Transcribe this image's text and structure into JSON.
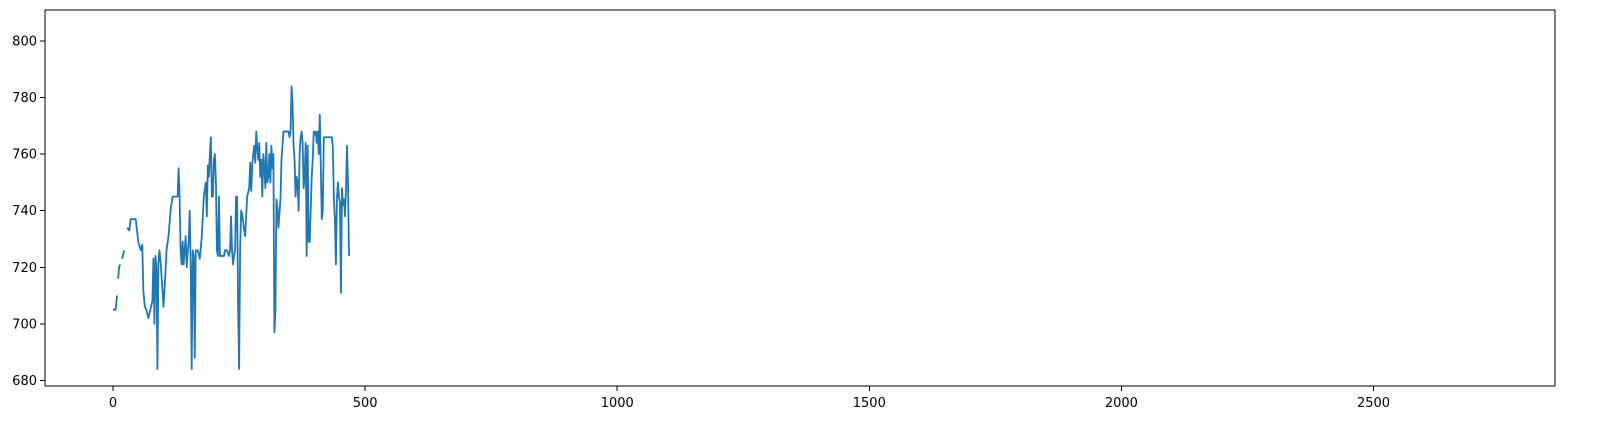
{
  "chart_data": {
    "type": "line",
    "title": "",
    "xlabel": "",
    "ylabel": "",
    "xlim": [
      -135,
      2860
    ],
    "ylim": [
      678,
      811
    ],
    "x_ticks": [
      0,
      500,
      1000,
      1500,
      2000,
      2500
    ],
    "x_tick_labels": [
      "0",
      "500",
      "1000",
      "1500",
      "2000",
      "2500"
    ],
    "y_ticks": [
      680,
      700,
      720,
      740,
      760,
      780,
      800
    ],
    "y_tick_labels": [
      "680",
      "700",
      "720",
      "740",
      "760",
      "780",
      "800"
    ],
    "grid": false,
    "legend": "none",
    "colors": {
      "series": "#1f77b4",
      "axes": "#000000",
      "background": "#ffffff"
    },
    "series": [
      {
        "segments": [
          [
            [
              0,
              705
            ],
            [
              5,
              705
            ],
            [
              8,
              710
            ]
          ],
          [
            [
              10,
              716
            ],
            [
              12,
              720
            ],
            [
              14,
              721
            ]
          ],
          [
            [
              18,
              723
            ],
            [
              22,
              726
            ]
          ],
          [
            [
              28,
              734
            ],
            [
              32,
              733
            ],
            [
              35,
              737
            ],
            [
              45,
              737
            ],
            [
              50,
              729
            ],
            [
              55,
              726
            ],
            [
              58,
              728
            ],
            [
              60,
              712
            ],
            [
              63,
              706
            ],
            [
              66,
              705
            ],
            [
              70,
              702
            ],
            [
              74,
              705
            ],
            [
              78,
              708
            ],
            [
              80,
              723
            ],
            [
              82,
              700
            ],
            [
              84,
              724
            ],
            [
              86,
              720
            ],
            [
              88,
              684
            ],
            [
              90,
              722
            ],
            [
              92,
              726
            ],
            [
              95,
              720
            ],
            [
              98,
              712
            ],
            [
              100,
              706
            ],
            [
              103,
              715
            ],
            [
              106,
              726
            ],
            [
              110,
              731
            ],
            [
              114,
              740
            ],
            [
              118,
              745
            ],
            [
              123,
              745
            ],
            [
              128,
              745
            ],
            [
              130,
              755
            ],
            [
              132,
              745
            ],
            [
              134,
              726
            ],
            [
              136,
              721
            ],
            [
              138,
              729
            ],
            [
              140,
              721
            ],
            [
              142,
              726
            ],
            [
              144,
              731
            ],
            [
              146,
              720
            ],
            [
              148,
              725
            ],
            [
              150,
              729
            ],
            [
              152,
              740
            ],
            [
              154,
              720
            ],
            [
              156,
              684
            ],
            [
              158,
              726
            ],
            [
              160,
              724
            ],
            [
              162,
              688
            ],
            [
              164,
              726
            ],
            [
              168,
              726
            ],
            [
              172,
              723
            ],
            [
              176,
              731
            ],
            [
              180,
              745
            ],
            [
              184,
              750
            ],
            [
              186,
              738
            ],
            [
              188,
              756
            ],
            [
              190,
              752
            ],
            [
              192,
              760
            ],
            [
              194,
              766
            ],
            [
              196,
              745
            ],
            [
              198,
              745
            ],
            [
              200,
              758
            ],
            [
              202,
              760
            ],
            [
              204,
              750
            ],
            [
              206,
              726
            ],
            [
              208,
              724
            ],
            [
              210,
              745
            ],
            [
              212,
              724
            ],
            [
              216,
              724
            ],
            [
              220,
              724
            ],
            [
              222,
              726
            ],
            [
              226,
              726
            ],
            [
              230,
              724
            ],
            [
              232,
              726
            ],
            [
              234,
              738
            ],
            [
              236,
              726
            ],
            [
              238,
              721
            ],
            [
              240,
              724
            ],
            [
              242,
              726
            ],
            [
              244,
              745
            ],
            [
              246,
              745
            ],
            [
              248,
              706
            ],
            [
              250,
              684
            ],
            [
              252,
              726
            ],
            [
              254,
              740
            ],
            [
              256,
              739
            ],
            [
              258,
              736
            ],
            [
              260,
              733
            ],
            [
              262,
              731
            ],
            [
              266,
              745
            ],
            [
              270,
              748
            ],
            [
              272,
              757
            ],
            [
              274,
              747
            ],
            [
              276,
              756
            ],
            [
              278,
              760
            ],
            [
              280,
              763
            ],
            [
              282,
              757
            ],
            [
              284,
              768
            ],
            [
              286,
              762
            ],
            [
              288,
              758
            ],
            [
              290,
              764
            ],
            [
              292,
              752
            ],
            [
              294,
              758
            ],
            [
              296,
              745
            ],
            [
              298,
              760
            ],
            [
              300,
              756
            ],
            [
              302,
              748
            ],
            [
              304,
              764
            ],
            [
              306,
              750
            ],
            [
              308,
              752
            ],
            [
              310,
              760
            ],
            [
              312,
              750
            ],
            [
              314,
              763
            ],
            [
              316,
              755
            ],
            [
              318,
              760
            ],
            [
              320,
              697
            ],
            [
              322,
              704
            ],
            [
              324,
              744
            ],
            [
              326,
              741
            ],
            [
              328,
              734
            ],
            [
              330,
              739
            ],
            [
              332,
              744
            ],
            [
              334,
              758
            ],
            [
              336,
              763
            ],
            [
              338,
              768
            ],
            [
              340,
              768
            ],
            [
              344,
              768
            ],
            [
              348,
              768
            ],
            [
              350,
              766
            ],
            [
              352,
              768
            ],
            [
              354,
              784
            ],
            [
              356,
              778
            ],
            [
              358,
              763
            ],
            [
              360,
              758
            ],
            [
              362,
              745
            ],
            [
              364,
              752
            ],
            [
              366,
              750
            ],
            [
              368,
              740
            ],
            [
              370,
              760
            ],
            [
              372,
              766
            ],
            [
              374,
              768
            ],
            [
              376,
              764
            ],
            [
              378,
              748
            ],
            [
              380,
              752
            ],
            [
              382,
              764
            ],
            [
              384,
              724
            ],
            [
              386,
              763
            ],
            [
              388,
              729
            ],
            [
              390,
              729
            ],
            [
              392,
              740
            ],
            [
              394,
              752
            ],
            [
              396,
              758
            ],
            [
              398,
              768
            ],
            [
              400,
              767
            ],
            [
              402,
              768
            ],
            [
              404,
              764
            ],
            [
              406,
              768
            ],
            [
              408,
              760
            ],
            [
              410,
              774
            ],
            [
              412,
              756
            ],
            [
              414,
              737
            ],
            [
              416,
              740
            ],
            [
              418,
              766
            ],
            [
              422,
              766
            ],
            [
              426,
              766
            ],
            [
              430,
              766
            ],
            [
              434,
              766
            ],
            [
              436,
              762
            ],
            [
              438,
              744
            ],
            [
              440,
              737
            ],
            [
              442,
              721
            ],
            [
              444,
              744
            ],
            [
              446,
              750
            ],
            [
              448,
              745
            ],
            [
              450,
              743
            ],
            [
              452,
              711
            ],
            [
              454,
              748
            ],
            [
              456,
              742
            ],
            [
              458,
              744
            ],
            [
              460,
              738
            ],
            [
              462,
              748
            ],
            [
              464,
              763
            ],
            [
              466,
              750
            ],
            [
              468,
              724
            ]
          ]
        ]
      }
    ]
  }
}
